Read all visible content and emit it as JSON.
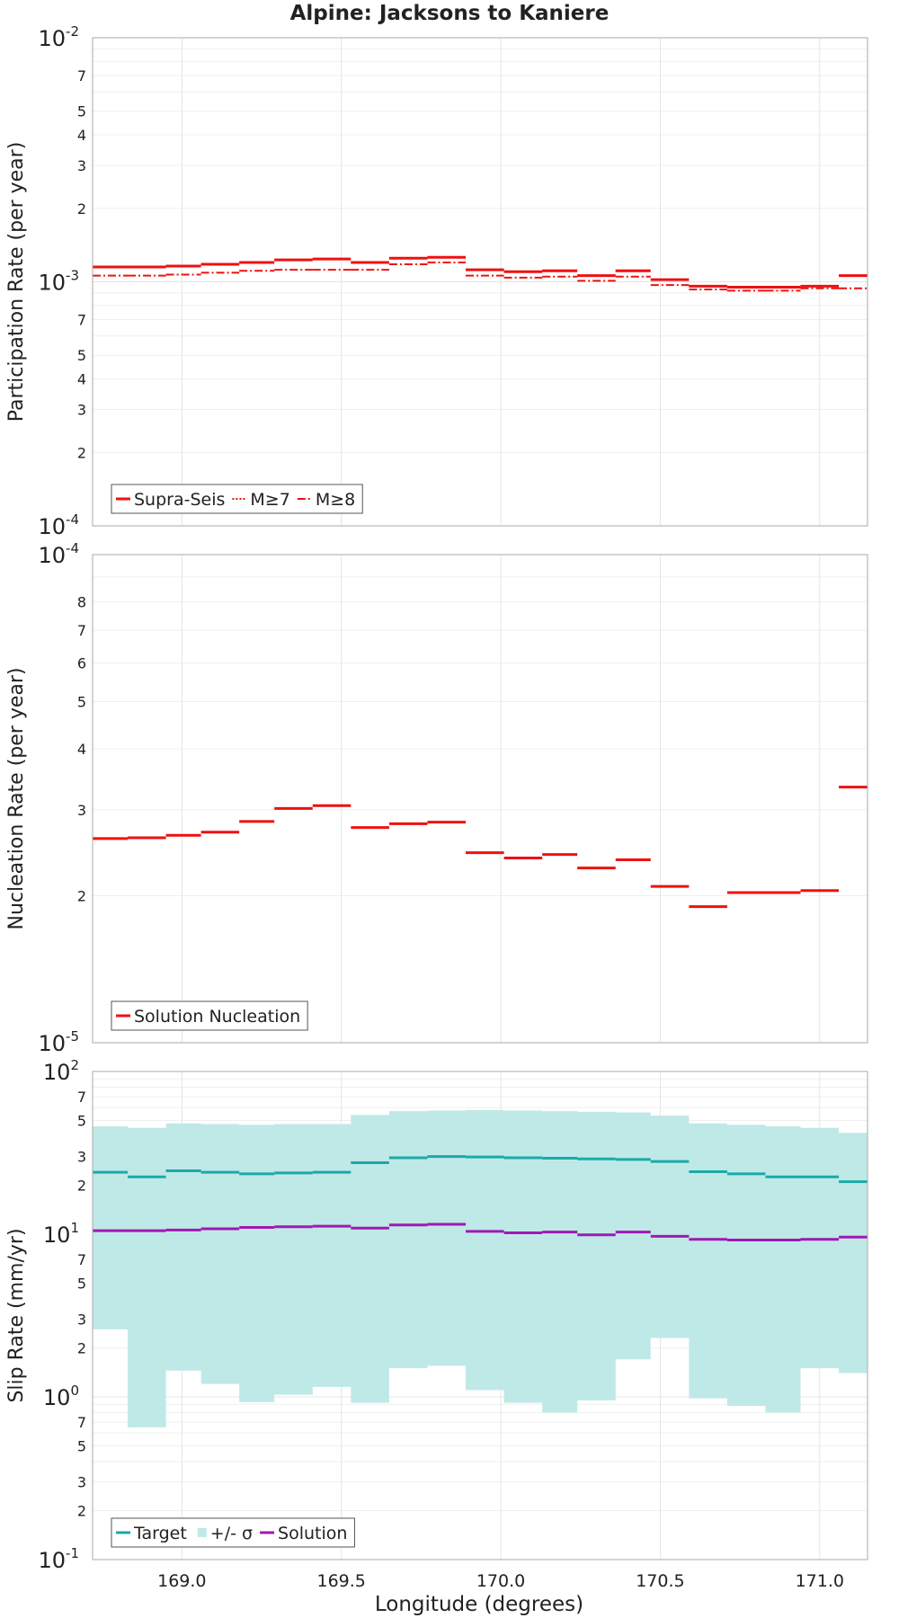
{
  "figure_title": "Alpine: Jacksons to Kaniere",
  "xlabel": "Longitude (degrees)",
  "x_tick_labels": [
    "169.0",
    "169.5",
    "170.0",
    "170.5",
    "171.0"
  ],
  "x_ticks": [
    169.0,
    169.5,
    170.0,
    170.5,
    171.0
  ],
  "xlim": [
    168.72,
    171.15
  ],
  "colors": {
    "red": "#ee1111",
    "teal": "#1aaaa8",
    "band": "#bfe9e7",
    "purple": "#a218b4",
    "grid": "#e4e4e4",
    "frame": "#aaaaaa"
  },
  "chart_data": [
    {
      "type": "line",
      "ylabel": "Participation Rate (per year)",
      "yscale": "log",
      "ylim": [
        0.0001,
        0.01
      ],
      "y_major_ticks": [
        {
          "value": 0.0001,
          "base": "10",
          "exp": "-4"
        },
        {
          "value": 0.001,
          "base": "10",
          "exp": "-3"
        },
        {
          "value": 0.01,
          "base": "10",
          "exp": "-2"
        }
      ],
      "y_minor_tick_labels": [
        "2",
        "3",
        "4",
        "5",
        "7",
        "2",
        "3",
        "4",
        "5",
        "7"
      ],
      "y_minor_tick_values": [
        0.0002,
        0.0003,
        0.0004,
        0.0005,
        0.0007,
        0.002,
        0.003,
        0.004,
        0.005,
        0.007
      ],
      "legend": [
        "Supra-Seis",
        "M≥7",
        "M≥8"
      ],
      "bin_edges": [
        168.72,
        168.83,
        168.95,
        169.06,
        169.18,
        169.29,
        169.41,
        169.53,
        169.65,
        169.77,
        169.89,
        170.01,
        170.13,
        170.24,
        170.36,
        170.47,
        170.59,
        170.71,
        170.83,
        170.94,
        171.06,
        171.15
      ],
      "series": [
        {
          "name": "Supra-Seis",
          "values": [
            0.00115,
            0.00115,
            0.00116,
            0.00118,
            0.0012,
            0.00123,
            0.00124,
            0.0012,
            0.00125,
            0.00126,
            0.00112,
            0.0011,
            0.00111,
            0.00106,
            0.00111,
            0.00102,
            0.00096,
            0.00095,
            0.00095,
            0.00096,
            0.00106
          ]
        },
        {
          "name": "M≥7",
          "values": [
            0.00115,
            0.00115,
            0.00116,
            0.00118,
            0.0012,
            0.00123,
            0.00124,
            0.0012,
            0.00125,
            0.00126,
            0.00112,
            0.0011,
            0.00111,
            0.00106,
            0.00111,
            0.00102,
            0.00096,
            0.00095,
            0.00095,
            0.00096,
            0.00106
          ]
        },
        {
          "name": "M≥8",
          "values": [
            0.00106,
            0.00106,
            0.00107,
            0.00109,
            0.00111,
            0.00112,
            0.00112,
            0.00112,
            0.00118,
            0.0012,
            0.00106,
            0.00104,
            0.00105,
            0.00101,
            0.00105,
            0.00097,
            0.00093,
            0.00092,
            0.00092,
            0.00094,
            0.00094
          ]
        }
      ]
    },
    {
      "type": "line",
      "ylabel": "Nucleation Rate (per year)",
      "yscale": "log",
      "ylim": [
        1e-05,
        0.0001
      ],
      "y_major_ticks": [
        {
          "value": 1e-05,
          "base": "10",
          "exp": "-5"
        },
        {
          "value": 0.0001,
          "base": "10",
          "exp": "-4"
        }
      ],
      "y_minor_tick_labels": [
        "2",
        "3",
        "4",
        "5",
        "6",
        "7",
        "8"
      ],
      "y_minor_tick_values": [
        2e-05,
        3e-05,
        4e-05,
        5e-05,
        6e-05,
        7e-05,
        8e-05
      ],
      "legend": [
        "Solution Nucleation"
      ],
      "bin_edges": [
        168.72,
        168.83,
        168.95,
        169.06,
        169.18,
        169.29,
        169.41,
        169.53,
        169.65,
        169.77,
        169.89,
        170.01,
        170.13,
        170.24,
        170.36,
        170.47,
        170.59,
        170.71,
        170.83,
        170.94,
        171.06,
        171.15
      ],
      "series": [
        {
          "name": "Solution Nucleation",
          "values": [
            2.62e-05,
            2.63e-05,
            2.66e-05,
            2.7e-05,
            2.84e-05,
            3.02e-05,
            3.06e-05,
            2.76e-05,
            2.81e-05,
            2.83e-05,
            2.45e-05,
            2.39e-05,
            2.43e-05,
            2.28e-05,
            2.37e-05,
            2.09e-05,
            1.9e-05,
            2.03e-05,
            2.03e-05,
            2.05e-05,
            3.34e-05
          ]
        }
      ]
    },
    {
      "type": "line",
      "ylabel": "Slip Rate (mm/yr)",
      "yscale": "log",
      "ylim": [
        0.1,
        100
      ],
      "y_major_ticks": [
        {
          "value": 0.1,
          "base": "10",
          "exp": "-1"
        },
        {
          "value": 1,
          "base": "10",
          "exp": "0"
        },
        {
          "value": 10,
          "base": "10",
          "exp": "1"
        },
        {
          "value": 100,
          "base": "10",
          "exp": "2"
        }
      ],
      "y_minor_tick_labels": [
        "2",
        "3",
        "5",
        "7",
        "2",
        "3",
        "5",
        "7",
        "2",
        "3",
        "5",
        "7"
      ],
      "y_minor_tick_values": [
        0.2,
        0.3,
        0.5,
        0.7,
        2,
        3,
        5,
        7,
        20,
        30,
        50,
        70
      ],
      "legend": [
        "Target",
        "+/- σ",
        "Solution"
      ],
      "bin_edges": [
        168.72,
        168.83,
        168.95,
        169.06,
        169.18,
        169.29,
        169.41,
        169.53,
        169.65,
        169.77,
        169.89,
        170.01,
        170.13,
        170.24,
        170.36,
        170.47,
        170.59,
        170.71,
        170.83,
        170.94,
        171.06,
        171.15
      ],
      "series": [
        {
          "name": "Target",
          "values": [
            24,
            22.5,
            24.5,
            24,
            23.5,
            23.8,
            24,
            27.5,
            29.5,
            30,
            29.8,
            29.5,
            29.3,
            29,
            28.8,
            28,
            24.2,
            23.5,
            22.5,
            22.5,
            21
          ]
        },
        {
          "name": "+/- σ upper",
          "values": [
            46,
            45,
            48,
            47.5,
            47,
            47.5,
            47.5,
            54,
            57,
            57.5,
            58,
            57.5,
            57,
            56.5,
            56,
            53.5,
            48,
            47,
            46,
            45,
            42
          ]
        },
        {
          "name": "+/- σ lower",
          "values": [
            2.6,
            0.65,
            1.45,
            1.2,
            0.93,
            1.03,
            1.15,
            0.92,
            1.5,
            1.55,
            1.1,
            0.92,
            0.8,
            0.95,
            1.7,
            2.3,
            0.98,
            0.88,
            0.8,
            1.5,
            1.4
          ]
        },
        {
          "name": "Solution",
          "values": [
            10.5,
            10.5,
            10.6,
            10.8,
            11,
            11.1,
            11.2,
            10.9,
            11.4,
            11.5,
            10.4,
            10.2,
            10.3,
            9.9,
            10.3,
            9.7,
            9.3,
            9.2,
            9.2,
            9.3,
            9.6
          ]
        }
      ]
    }
  ]
}
